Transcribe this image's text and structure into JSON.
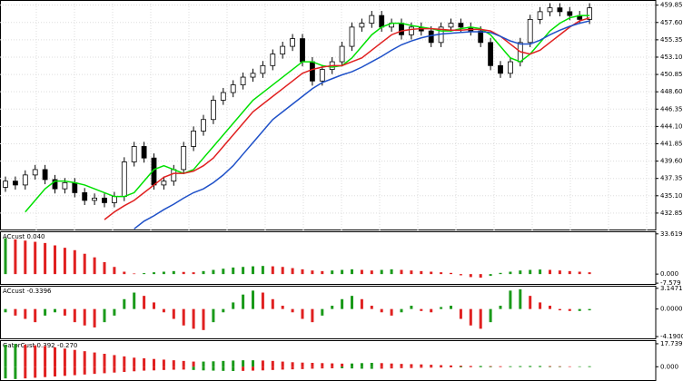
{
  "chart_data": [
    {
      "type": "candlestick",
      "grid": true,
      "bull_color": "#ffffff",
      "bear_color": "#000000",
      "ylim": [
        430.6,
        460.4
      ],
      "yticks": [
        459.85,
        {
          "value": 457.6,
          "label": "457.60"
        },
        455.35,
        {
          "value": 453.1,
          "label": "453.10"
        },
        450.85,
        {
          "value": 448.6,
          "label": "448.60"
        },
        446.35,
        {
          "value": 444.1,
          "label": "444.10"
        },
        441.85,
        {
          "value": 439.6,
          "label": "439.60"
        },
        437.35,
        {
          "value": 435.1,
          "label": "435.10"
        },
        432.85
      ],
      "open": [
        436.2,
        437.0,
        436.5,
        437.8,
        438.5,
        437.2,
        436.0,
        436.8,
        435.5,
        434.5,
        434.8,
        434.2,
        435.0,
        439.5,
        441.5,
        440.0,
        436.5,
        437.0,
        438.5,
        441.5,
        443.5,
        445.0,
        447.5,
        448.5,
        449.5,
        450.5,
        451.0,
        452.0,
        453.5,
        454.5,
        455.5,
        452.5,
        450.0,
        451.5,
        452.5,
        454.5,
        457.0,
        457.5,
        458.5,
        457.0,
        457.5,
        456.0,
        457.0,
        456.5,
        455.0,
        457.0,
        457.5,
        457.0,
        456.5,
        455.0,
        452.0,
        451.0,
        452.5,
        455.0,
        458.0,
        459.0,
        459.5,
        459.0,
        458.5,
        458.0
      ],
      "high": [
        437.6,
        437.6,
        438.4,
        439.1,
        439.1,
        437.8,
        437.4,
        437.4,
        436.1,
        435.4,
        435.4,
        435.6,
        440.1,
        442.1,
        442.1,
        440.6,
        437.6,
        439.1,
        442.1,
        444.1,
        445.6,
        448.1,
        449.1,
        450.1,
        451.1,
        451.6,
        452.6,
        454.1,
        455.1,
        456.1,
        456.1,
        453.1,
        452.1,
        453.1,
        455.1,
        457.6,
        458.1,
        459.1,
        459.1,
        458.1,
        458.1,
        457.6,
        457.6,
        457.1,
        457.6,
        458.1,
        458.1,
        457.6,
        457.1,
        455.6,
        452.6,
        453.1,
        455.6,
        458.6,
        459.6,
        460.1,
        460.1,
        459.6,
        459.1,
        460.1
      ],
      "low": [
        435.6,
        435.9,
        435.9,
        437.2,
        436.6,
        435.4,
        435.4,
        434.9,
        433.9,
        433.9,
        433.6,
        433.6,
        434.4,
        438.9,
        439.4,
        435.9,
        435.9,
        436.4,
        437.9,
        440.9,
        442.9,
        444.4,
        446.9,
        447.9,
        448.9,
        449.9,
        450.4,
        451.4,
        452.9,
        453.9,
        451.9,
        449.4,
        449.4,
        450.9,
        451.9,
        453.9,
        456.4,
        456.9,
        456.4,
        456.4,
        455.4,
        455.4,
        455.9,
        454.4,
        454.4,
        456.4,
        456.4,
        455.9,
        454.4,
        451.4,
        450.4,
        450.4,
        451.9,
        454.4,
        457.4,
        458.4,
        458.4,
        457.9,
        457.4,
        457.4
      ],
      "close": [
        437.0,
        436.5,
        437.8,
        438.5,
        437.2,
        436.0,
        436.8,
        435.5,
        434.5,
        434.8,
        434.2,
        435.0,
        439.5,
        441.5,
        440.0,
        436.5,
        437.0,
        438.5,
        441.5,
        443.5,
        445.0,
        447.5,
        448.5,
        449.5,
        450.5,
        451.0,
        452.0,
        453.5,
        454.5,
        455.5,
        452.5,
        450.0,
        451.5,
        452.5,
        454.5,
        457.0,
        457.5,
        458.5,
        457.0,
        457.5,
        456.0,
        457.0,
        456.5,
        455.0,
        457.0,
        457.5,
        457.0,
        456.5,
        455.0,
        452.0,
        451.0,
        452.5,
        455.0,
        458.0,
        459.0,
        459.5,
        459.0,
        458.5,
        458.0,
        459.5
      ],
      "series": [
        {
          "color": "#00e000",
          "values": [
            null,
            null,
            433.0,
            434.5,
            436.0,
            437.0,
            437.0,
            436.8,
            436.5,
            436.0,
            435.5,
            435.0,
            435.0,
            435.5,
            437.0,
            438.5,
            439.0,
            438.5,
            438.0,
            438.5,
            440.0,
            441.5,
            443.0,
            444.5,
            446.0,
            447.5,
            448.5,
            449.5,
            450.5,
            451.5,
            452.5,
            452.5,
            452.0,
            451.8,
            452.0,
            453.0,
            454.5,
            456.0,
            457.0,
            457.5,
            457.5,
            457.2,
            457.0,
            456.8,
            456.5,
            456.5,
            456.8,
            457.0,
            456.8,
            456.0,
            454.5,
            453.0,
            452.5,
            453.5,
            455.0,
            456.5,
            457.5,
            458.2,
            458.5,
            458.5
          ]
        },
        {
          "color": "#e02020",
          "values": [
            null,
            null,
            null,
            null,
            null,
            null,
            null,
            null,
            null,
            null,
            432.0,
            433.0,
            433.8,
            434.5,
            435.5,
            436.5,
            437.5,
            438.0,
            438.0,
            438.3,
            439.0,
            440.0,
            441.5,
            443.0,
            444.5,
            446.0,
            447.0,
            448.0,
            449.0,
            450.0,
            451.0,
            451.5,
            451.8,
            452.0,
            452.0,
            452.5,
            453.0,
            454.0,
            455.0,
            456.0,
            456.5,
            456.7,
            456.8,
            456.8,
            456.7,
            456.6,
            456.6,
            456.7,
            456.7,
            456.5,
            455.8,
            454.8,
            453.8,
            453.5,
            454.0,
            455.0,
            456.0,
            457.0,
            457.8,
            458.2
          ]
        },
        {
          "color": "#1e50c8",
          "values": [
            null,
            null,
            null,
            null,
            null,
            null,
            null,
            null,
            null,
            null,
            null,
            null,
            null,
            430.8,
            431.8,
            432.5,
            433.3,
            434.0,
            434.8,
            435.5,
            436.0,
            436.8,
            437.8,
            439.0,
            440.5,
            442.0,
            443.5,
            445.0,
            446.0,
            447.0,
            448.0,
            449.0,
            449.8,
            450.3,
            450.8,
            451.2,
            451.8,
            452.5,
            453.2,
            454.0,
            454.7,
            455.2,
            455.6,
            455.9,
            456.1,
            456.2,
            456.3,
            456.4,
            456.4,
            456.3,
            455.8,
            455.2,
            454.8,
            454.8,
            455.3,
            456.0,
            456.6,
            457.1,
            457.5,
            457.8
          ]
        }
      ]
    },
    {
      "type": "bar",
      "title": "ACcust 0.040",
      "up_color": "#1a9a1a",
      "down_color": "#e02020",
      "ylim": [
        -9,
        35
      ],
      "yticks": [
        33.619,
        {
          "value": 0,
          "label": "0.000"
        },
        -7.579
      ],
      "values": [
        30,
        29,
        28,
        27,
        26,
        24,
        22,
        20,
        17,
        14,
        10,
        6,
        2,
        0.5,
        0.8,
        1.5,
        2,
        2.5,
        1.8,
        1.5,
        2.5,
        3.5,
        4.5,
        5.5,
        6,
        6.5,
        6.8,
        6.5,
        6,
        5,
        4,
        3,
        2.5,
        3,
        3.5,
        4,
        3.5,
        3,
        3.5,
        4,
        3.5,
        3,
        2.5,
        2,
        1.5,
        1,
        -1,
        -2.5,
        -3,
        -1.5,
        1,
        2,
        3,
        3.5,
        3.8,
        3.5,
        3,
        2.5,
        2,
        1.5
      ]
    },
    {
      "type": "bar",
      "title": "ACcust -0.3396",
      "up_color": "#1a9a1a",
      "down_color": "#e02020",
      "ylim": [
        -4.6,
        3.4
      ],
      "yticks": [
        3.1471,
        {
          "value": 0,
          "label": "0.0000"
        },
        {
          "value": -4.19,
          "label": "-4.1900"
        }
      ],
      "values": [
        -0.5,
        -1,
        -1.5,
        -2,
        -1,
        -0.5,
        -1,
        -2,
        -2.5,
        -2.8,
        -2,
        -1,
        1.5,
        2.5,
        2,
        1,
        -0.5,
        -1.5,
        -2.5,
        -3,
        -3.2,
        -2,
        -0.5,
        1,
        2.2,
        2.8,
        2.5,
        1.5,
        0.5,
        -0.5,
        -1.5,
        -2,
        -1,
        0.5,
        1.5,
        2,
        1.5,
        0.5,
        -0.5,
        -1,
        -0.5,
        0.5,
        -0.3,
        -0.5,
        0.3,
        0.5,
        -1.5,
        -2.5,
        -3,
        -2,
        0.5,
        2.8,
        3,
        2,
        1,
        0.5,
        -0.2,
        -0.3,
        -0.3,
        -0.2
      ]
    },
    {
      "type": "gator",
      "title": "GatorCust 0.392 -0.270",
      "up_color": "#1a9a1a",
      "down_color": "#e02020",
      "ylim": [
        -11,
        19.8
      ],
      "yticks": [
        17.739,
        {
          "value": 0,
          "label": "0.000"
        }
      ],
      "upper": [
        17,
        17.5,
        17,
        16.5,
        16,
        15,
        14,
        13,
        12,
        11,
        10,
        9,
        8,
        7,
        6.5,
        6,
        5.5,
        5,
        4.5,
        4,
        4,
        4.2,
        4.5,
        4.8,
        5,
        5,
        4.8,
        4.5,
        4,
        3.5,
        3.2,
        3,
        2.8,
        2.6,
        2.4,
        2.5,
        2.8,
        3,
        2.8,
        2.5,
        2.2,
        2,
        1.8,
        1.5,
        1.2,
        1,
        0.8,
        0.6,
        0.6,
        0.5,
        0.4,
        0.4,
        0.5,
        0.6,
        0.6,
        0.5,
        0.4,
        0.3,
        0.3,
        0.4
      ],
      "lower": [
        -9,
        -9.5,
        -9,
        -8.5,
        -8,
        -7.5,
        -7,
        -6.5,
        -6,
        -5.5,
        -5,
        -4.5,
        -4,
        -3.5,
        -3,
        -2.8,
        -2.5,
        -2.3,
        -2.2,
        -2.5,
        -2.8,
        -3,
        -3.2,
        -3.3,
        -3.2,
        -3,
        -2.8,
        -2.5,
        -2.2,
        -2,
        -1.8,
        -1.5,
        -1.3,
        -1.2,
        -1.2,
        -1.3,
        -1.5,
        -1.6,
        -1.5,
        -1.3,
        -1.1,
        -1,
        -0.8,
        -0.7,
        -0.6,
        -0.5,
        -0.5,
        -0.4,
        -0.4,
        -0.4,
        -0.3,
        -0.3,
        -0.3,
        -0.3,
        -0.3,
        -0.3,
        -0.3,
        -0.2,
        -0.2,
        -0.3
      ]
    }
  ]
}
